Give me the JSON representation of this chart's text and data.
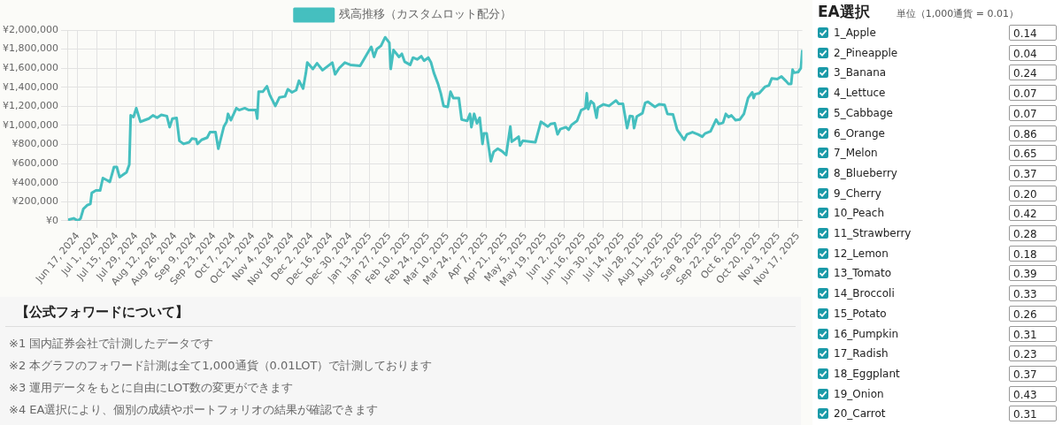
{
  "chart_data": [
    {
      "type": "line",
      "legend": "top",
      "grid": true,
      "marker": "none",
      "xlim": [
        "2024-06-10",
        "2025-11-20"
      ],
      "ylim": [
        0,
        2000000
      ],
      "yticks": [
        {
          "value": 0,
          "label": "¥0"
        },
        {
          "value": 200000,
          "label": "¥200,000"
        },
        {
          "value": 400000,
          "label": "¥400,000"
        },
        {
          "value": 600000,
          "label": "¥600,000"
        },
        {
          "value": 800000,
          "label": "¥800,000"
        },
        {
          "value": 1000000,
          "label": "¥1,000,000"
        },
        {
          "value": 1200000,
          "label": "¥1,200,000"
        },
        {
          "value": 1400000,
          "label": "¥1,400,000"
        },
        {
          "value": 1600000,
          "label": "¥1,600,000"
        },
        {
          "value": 1800000,
          "label": "¥1,800,000"
        },
        {
          "value": 2000000,
          "label": "¥2,000,000"
        }
      ],
      "xticks": [
        {
          "value": "2024-06-17",
          "label": "Jun 17, 2024"
        },
        {
          "value": "2024-07-01",
          "label": "Jul 1, 2024"
        },
        {
          "value": "2024-07-15",
          "label": "Jul 15, 2024"
        },
        {
          "value": "2024-07-29",
          "label": "Jul 29, 2024"
        },
        {
          "value": "2024-08-12",
          "label": "Aug 12, 2024"
        },
        {
          "value": "2024-08-26",
          "label": "Aug 26, 2024"
        },
        {
          "value": "2024-09-09",
          "label": "Sep 9, 2024"
        },
        {
          "value": "2024-09-23",
          "label": "Sep 23, 2024"
        },
        {
          "value": "2024-10-07",
          "label": "Oct 7, 2024"
        },
        {
          "value": "2024-10-21",
          "label": "Oct 21, 2024"
        },
        {
          "value": "2024-11-04",
          "label": "Nov 4, 2024"
        },
        {
          "value": "2024-11-18",
          "label": "Nov 18, 2024"
        },
        {
          "value": "2024-12-02",
          "label": "Dec 2, 2024"
        },
        {
          "value": "2024-12-16",
          "label": "Dec 16, 2024"
        },
        {
          "value": "2024-12-30",
          "label": "Dec 30, 2024"
        },
        {
          "value": "2025-01-13",
          "label": "Jan 13, 2025"
        },
        {
          "value": "2025-01-27",
          "label": "Jan 27, 2025"
        },
        {
          "value": "2025-02-10",
          "label": "Feb 10, 2025"
        },
        {
          "value": "2025-02-24",
          "label": "Feb 24, 2025"
        },
        {
          "value": "2025-03-10",
          "label": "Mar 10, 2025"
        },
        {
          "value": "2025-03-24",
          "label": "Mar 24, 2025"
        },
        {
          "value": "2025-04-07",
          "label": "Apr 7, 2025"
        },
        {
          "value": "2025-04-21",
          "label": "Apr 21, 2025"
        },
        {
          "value": "2025-05-05",
          "label": "May 5, 2025"
        },
        {
          "value": "2025-05-19",
          "label": "May 19, 2025"
        },
        {
          "value": "2025-06-02",
          "label": "Jun 2, 2025"
        },
        {
          "value": "2025-06-16",
          "label": "Jun 16, 2025"
        },
        {
          "value": "2025-06-30",
          "label": "Jun 30, 2025"
        },
        {
          "value": "2025-07-14",
          "label": "Jul 14, 2025"
        },
        {
          "value": "2025-07-28",
          "label": "Jul 28, 2025"
        },
        {
          "value": "2025-08-11",
          "label": "Aug 11, 2025"
        },
        {
          "value": "2025-08-25",
          "label": "Aug 25, 2025"
        },
        {
          "value": "2025-09-08",
          "label": "Sep 8, 2025"
        },
        {
          "value": "2025-09-22",
          "label": "Sep 22, 2025"
        },
        {
          "value": "2025-10-06",
          "label": "Oct 6, 2025"
        },
        {
          "value": "2025-10-20",
          "label": "Oct 20, 2025"
        },
        {
          "value": "2025-11-03",
          "label": "Nov 3, 2025"
        },
        {
          "value": "2025-11-17",
          "label": "Nov 17, 2025"
        }
      ],
      "x": [
        "2024-06-10",
        "2024-06-14",
        "2024-06-17",
        "2024-06-19",
        "2024-06-21",
        "2024-06-24",
        "2024-06-26",
        "2024-06-27",
        "2024-06-30",
        "2024-07-03",
        "2024-07-05",
        "2024-07-08",
        "2024-07-10",
        "2024-07-13",
        "2024-07-15",
        "2024-07-17",
        "2024-07-22",
        "2024-07-24",
        "2024-07-25",
        "2024-07-27",
        "2024-07-29",
        "2024-08-01",
        "2024-08-04",
        "2024-08-07",
        "2024-08-10",
        "2024-08-13",
        "2024-08-16",
        "2024-08-20",
        "2024-08-22",
        "2024-08-24",
        "2024-08-27",
        "2024-08-29",
        "2024-09-01",
        "2024-09-05",
        "2024-09-07",
        "2024-09-10",
        "2024-09-11",
        "2024-09-14",
        "2024-09-18",
        "2024-09-20",
        "2024-09-24",
        "2024-09-26",
        "2024-09-30",
        "2024-10-02",
        "2024-10-03",
        "2024-10-05",
        "2024-10-09",
        "2024-10-11",
        "2024-10-15",
        "2024-10-18",
        "2024-10-23",
        "2024-10-24",
        "2024-10-25",
        "2024-10-28",
        "2024-10-31",
        "2024-11-02",
        "2024-11-06",
        "2024-11-09",
        "2024-11-13",
        "2024-11-15",
        "2024-11-18",
        "2024-11-21",
        "2024-11-23",
        "2024-11-26",
        "2024-11-28",
        "2024-11-29",
        "2024-12-03",
        "2024-12-06",
        "2024-12-10",
        "2024-12-17",
        "2024-12-19",
        "2024-12-22",
        "2024-12-26",
        "2024-12-30",
        "2025-01-06",
        "2025-01-11",
        "2025-01-14",
        "2025-01-16",
        "2025-01-18",
        "2025-01-21",
        "2025-01-24",
        "2025-01-27",
        "2025-01-28",
        "2025-01-30",
        "2025-02-03",
        "2025-02-05",
        "2025-02-07",
        "2025-02-11",
        "2025-02-13",
        "2025-02-16",
        "2025-02-19",
        "2025-02-21",
        "2025-02-24",
        "2025-02-26",
        "2025-02-28",
        "2025-03-03",
        "2025-03-05",
        "2025-03-07",
        "2025-03-10",
        "2025-03-12",
        "2025-03-14",
        "2025-03-18",
        "2025-03-20",
        "2025-03-24",
        "2025-03-26",
        "2025-03-27",
        "2025-03-29",
        "2025-03-31",
        "2025-04-02",
        "2025-04-04",
        "2025-04-05",
        "2025-04-07",
        "2025-04-10",
        "2025-04-12",
        "2025-04-15",
        "2025-04-18",
        "2025-04-21",
        "2025-04-24",
        "2025-04-25",
        "2025-04-30",
        "2025-05-01",
        "2025-05-03",
        "2025-05-09",
        "2025-05-12",
        "2025-05-16",
        "2025-05-21",
        "2025-05-23",
        "2025-05-26",
        "2025-05-28",
        "2025-05-30",
        "2025-06-03",
        "2025-06-05",
        "2025-06-07",
        "2025-06-11",
        "2025-06-14",
        "2025-06-17",
        "2025-06-18",
        "2025-06-19",
        "2025-06-21",
        "2025-06-23",
        "2025-06-25",
        "2025-06-26",
        "2025-06-30",
        "2025-07-04",
        "2025-07-06",
        "2025-07-09",
        "2025-07-11",
        "2025-07-14",
        "2025-07-17",
        "2025-07-19",
        "2025-07-21",
        "2025-07-22",
        "2025-07-24",
        "2025-07-28",
        "2025-07-30",
        "2025-08-01",
        "2025-08-06",
        "2025-08-09",
        "2025-08-13",
        "2025-08-15",
        "2025-08-19",
        "2025-08-22",
        "2025-08-27",
        "2025-08-29",
        "2025-09-02",
        "2025-09-06",
        "2025-09-09",
        "2025-09-11",
        "2025-09-15",
        "2025-09-19",
        "2025-09-21",
        "2025-09-24",
        "2025-09-26",
        "2025-09-28",
        "2025-09-30",
        "2025-10-03",
        "2025-10-06",
        "2025-10-09",
        "2025-10-12",
        "2025-10-15",
        "2025-10-16",
        "2025-10-17",
        "2025-10-20",
        "2025-10-24",
        "2025-10-27",
        "2025-10-29",
        "2025-11-02",
        "2025-11-05",
        "2025-11-08",
        "2025-11-10",
        "2025-11-12",
        "2025-11-13",
        "2025-11-14",
        "2025-11-17",
        "2025-11-19",
        "2025-11-20"
      ],
      "series": [
        {
          "name": "残高推移（カスタムロット配分）",
          "color": "#45bfbf",
          "values": [
            10000,
            26000,
            0,
            26000,
            126000,
            166000,
            176000,
            292000,
            318000,
            318000,
            448000,
            425000,
            408000,
            564000,
            564000,
            458000,
            508000,
            590000,
            1105000,
            1088000,
            1181000,
            1038000,
            1055000,
            1071000,
            1105000,
            1081000,
            1111000,
            1098000,
            982000,
            1071000,
            1078000,
            839000,
            806000,
            823000,
            862000,
            856000,
            806000,
            849000,
            872000,
            929000,
            929000,
            756000,
            988000,
            1038000,
            1121000,
            1055000,
            1181000,
            1161000,
            1181000,
            1161000,
            1161000,
            1071000,
            1353000,
            1353000,
            1410000,
            1320000,
            1204000,
            1294000,
            1304000,
            1380000,
            1347000,
            1370000,
            1469000,
            1387000,
            1552000,
            1659000,
            1592000,
            1652000,
            1579000,
            1659000,
            1536000,
            1602000,
            1659000,
            1635000,
            1625000,
            1751000,
            1824000,
            1718000,
            1801000,
            1834000,
            1924000,
            1867000,
            1592000,
            1791000,
            1718000,
            1751000,
            1668000,
            1635000,
            1711000,
            1692000,
            1725000,
            1678000,
            1711000,
            1659000,
            1552000,
            1436000,
            1337000,
            1204000,
            1194000,
            1353000,
            1287000,
            1287000,
            1061000,
            1048000,
            1121000,
            982000,
            1121000,
            1022000,
            1081000,
            806000,
            915000,
            915000,
            624000,
            723000,
            756000,
            730000,
            690000,
            988000,
            829000,
            882000,
            789000,
            839000,
            829000,
            823000,
            1038000,
            988000,
            1015000,
            1022000,
            906000,
            962000,
            982000,
            955000,
            1005000,
            1048000,
            1161000,
            1181000,
            1337000,
            1171000,
            1254000,
            1227000,
            1081000,
            1187000,
            1221000,
            1204000,
            1227000,
            1261000,
            1227000,
            1227000,
            972000,
            1098000,
            1095000,
            972000,
            1095000,
            1128000,
            1237000,
            1247000,
            1194000,
            1221000,
            1214000,
            1121000,
            1115000,
            955000,
            849000,
            906000,
            929000,
            906000,
            882000,
            915000,
            939000,
            1061000,
            1015000,
            1028000,
            1121000,
            1088000,
            1105000,
            1055000,
            1061000,
            1121000,
            1287000,
            1347000,
            1287000,
            1327000,
            1337000,
            1403000,
            1420000,
            1493000,
            1486000,
            1513000,
            1469000,
            1436000,
            1436000,
            1585000,
            1552000,
            1559000,
            1602000,
            1791000
          ]
        }
      ],
      "annotations": [
        "【公式フォワードについて】",
        "※1 国内証券会社で計測したデータです",
        "※2 本グラフのフォワード計測は全て1,000通貨（0.01LOT）で計測しております",
        "※3 運用データをもとに自由にLOT数の変更ができます",
        "※4 EA選択により、個別の成績やポートフォリオの結果が確認できます"
      ]
    },
    {
      "type": "other",
      "title": "EA選択",
      "subtitle": "単位（1,000通貨 = 0.01）",
      "annotations": [
        "1_Apple",
        "0.14",
        "2_Pineapple",
        "0.04",
        "3_Banana",
        "0.24",
        "4_Lettuce",
        "0.07",
        "5_Cabbage",
        "0.07",
        "6_Orange",
        "0.86",
        "7_Melon",
        "0.65",
        "8_Blueberry",
        "0.37",
        "9_Cherry",
        "0.20",
        "10_Peach",
        "0.42",
        "11_Strawberry",
        "0.28",
        "12_Lemon",
        "0.18",
        "13_Tomato",
        "0.39",
        "14_Broccoli",
        "0.33",
        "15_Potato",
        "0.26",
        "16_Pumpkin",
        "0.31",
        "17_Radish",
        "0.23",
        "18_Eggplant",
        "0.37",
        "19_Onion",
        "0.43",
        "20_Carrot",
        "0.31"
      ]
    }
  ]
}
